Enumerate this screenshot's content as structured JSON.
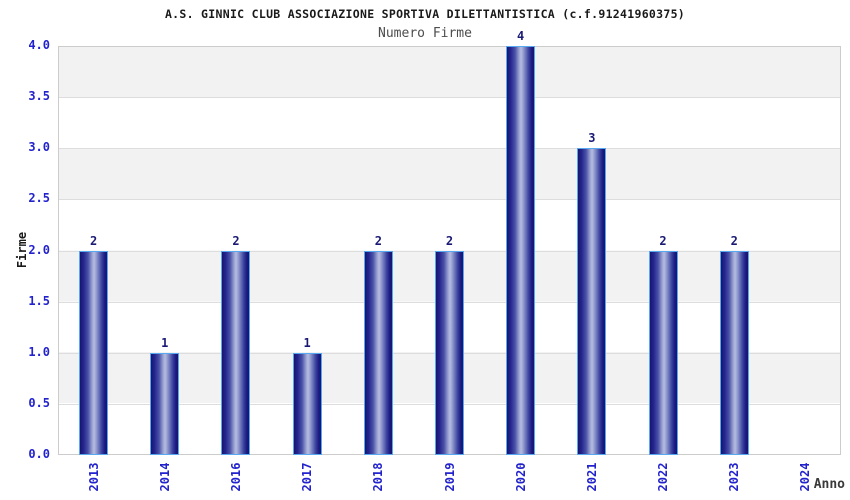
{
  "chart_data": {
    "type": "bar",
    "title": "A.S. GINNIC CLUB ASSOCIAZIONE SPORTIVA DILETTANTISTICA (c.f.91241960375)",
    "subtitle": "Numero Firme",
    "xlabel": "Anno",
    "ylabel": "Firme",
    "categories": [
      "2013",
      "2014",
      "2016",
      "2017",
      "2018",
      "2019",
      "2020",
      "2021",
      "2022",
      "2023",
      "2024"
    ],
    "values": [
      2,
      1,
      2,
      1,
      2,
      2,
      4,
      3,
      2,
      2,
      null
    ],
    "ylim": [
      0,
      4
    ],
    "yticks": [
      "0.0",
      "0.5",
      "1.0",
      "1.5",
      "2.0",
      "2.5",
      "3.0",
      "3.5",
      "4.0"
    ],
    "grid": "horizontal alternating bands, light gray lines every 0.5",
    "legend": "none",
    "colors": {
      "tick_label": "#2323cd",
      "value_label": "#1a1a75",
      "bar_dark": "#17176e",
      "bar_light": "#b6bce0",
      "bar_border": "#58a8f0",
      "band_gray": "#f2f2f2",
      "plot_border": "#cccccc"
    }
  }
}
